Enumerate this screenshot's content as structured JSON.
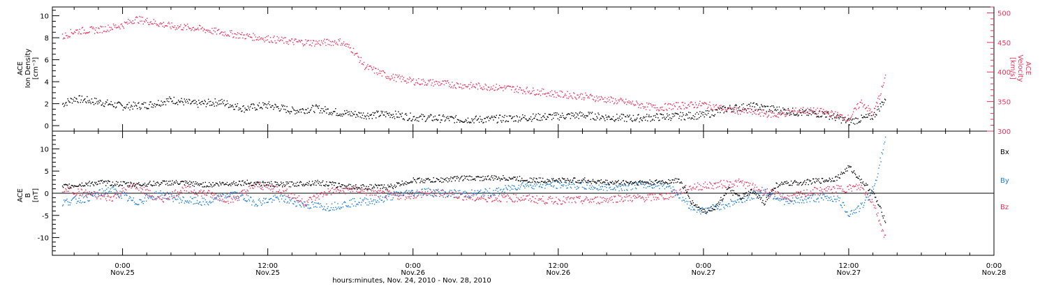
{
  "colors": {
    "black": "#000000",
    "red": "#e8345c",
    "blue": "#1e7fd8"
  },
  "chart_data": [
    {
      "type": "scatter",
      "panel": "top",
      "ylabel_left": [
        "ACE",
        "Ion Density",
        "[cm⁻³]"
      ],
      "ylabel_right": [
        "ACE",
        "Velocity",
        "[km/s]"
      ],
      "left_axis": {
        "ylim": [
          -0.5,
          10.8
        ],
        "ticks": [
          "0",
          "2",
          "4",
          "6",
          "8",
          "10"
        ],
        "tick_values": [
          0,
          2,
          4,
          6,
          8,
          10
        ]
      },
      "right_axis": {
        "ylim": [
          300,
          510
        ],
        "ticks": [
          "300",
          "350",
          "400",
          "450",
          "500"
        ],
        "tick_values": [
          300,
          350,
          400,
          450,
          500
        ]
      },
      "x_unit": "hours since Nov. 24, 2010 00:00",
      "series": [
        {
          "color": "#000000",
          "axis": "left",
          "x": [
            19,
            20,
            22,
            24,
            26,
            28,
            30,
            32,
            34,
            36,
            38,
            40,
            42,
            44,
            46,
            48,
            50,
            52,
            54,
            56,
            58,
            60,
            62,
            64,
            66,
            68,
            70,
            72,
            74,
            76,
            78,
            80,
            82,
            84,
            86,
            87
          ],
          "y": [
            2.0,
            2.5,
            2.2,
            1.8,
            1.9,
            2.4,
            2.0,
            2.2,
            1.6,
            1.9,
            1.4,
            1.6,
            1.2,
            1.0,
            1.1,
            0.8,
            0.7,
            0.6,
            0.6,
            0.7,
            0.8,
            0.9,
            1.0,
            0.8,
            0.7,
            0.8,
            0.9,
            1.0,
            1.6,
            1.8,
            1.5,
            1.2,
            1.1,
            0.4,
            0.9,
            2.5
          ]
        },
        {
          "color": "#e8345c",
          "axis": "right",
          "x": [
            19,
            20,
            22,
            24,
            25,
            26,
            28,
            30,
            32,
            34,
            36,
            38,
            40,
            42,
            43,
            44,
            46,
            48,
            50,
            52,
            54,
            56,
            58,
            60,
            62,
            64,
            66,
            68,
            70,
            72,
            74,
            76,
            78,
            80,
            82,
            84,
            85,
            86,
            87
          ],
          "y": [
            460,
            470,
            472,
            480,
            490,
            487,
            478,
            475,
            468,
            462,
            457,
            452,
            450,
            452,
            438,
            410,
            393,
            385,
            382,
            378,
            376,
            373,
            368,
            363,
            360,
            354,
            348,
            340,
            344,
            346,
            337,
            333,
            328,
            336,
            333,
            322,
            350,
            330,
            390
          ]
        }
      ]
    },
    {
      "type": "scatter",
      "panel": "bottom",
      "ylabel": [
        "ACE",
        "B",
        "[nT]"
      ],
      "ylim": [
        -14,
        14
      ],
      "yticks": [
        "-10",
        "-5",
        "0",
        "5",
        "10"
      ],
      "ytick_values": [
        -10,
        -5,
        0,
        5,
        10
      ],
      "legend": [
        "Bx",
        "By",
        "Bz"
      ],
      "xticks_top": [
        "0:00",
        "12:00",
        "0:00",
        "12:00",
        "0:00",
        "12:00",
        "0:00"
      ],
      "xticks_bottom": [
        "Nov.25",
        "Nov.25",
        "Nov.26",
        "Nov.26",
        "Nov.27",
        "Nov.27",
        "Nov.28"
      ],
      "xtick_values": [
        24,
        36,
        48,
        60,
        72,
        84,
        96
      ],
      "xlim": [
        18.2,
        96
      ],
      "xlabel": "hours:minutes, Nov. 24, 2010 - Nov. 28, 2010",
      "series": [
        {
          "name": "Bx",
          "color": "#000000",
          "x": [
            19,
            22,
            25,
            28,
            31,
            34,
            37,
            40,
            43,
            46,
            48,
            50,
            52,
            54,
            56,
            58,
            60,
            62,
            64,
            66,
            68,
            70,
            71,
            72,
            73,
            74,
            75,
            76,
            77,
            78,
            80,
            82,
            83,
            84,
            85,
            86,
            87
          ],
          "y": [
            1.5,
            2.5,
            2.0,
            2.5,
            2.0,
            2.5,
            2.0,
            2.5,
            1.5,
            1.5,
            3.0,
            3.0,
            3.5,
            3.5,
            3.5,
            3.0,
            3.0,
            3.0,
            2.5,
            2.5,
            2.5,
            3.0,
            -2.0,
            -4.0,
            -3.0,
            1.0,
            -1.0,
            0.5,
            -2.0,
            2.0,
            2.5,
            3.0,
            3.5,
            6.0,
            3.0,
            0.0,
            -6.0
          ]
        },
        {
          "name": "By",
          "color": "#1e7fd8",
          "x": [
            19,
            21,
            23,
            25,
            27,
            29,
            31,
            33,
            35,
            37,
            39,
            41,
            43,
            45,
            47,
            49,
            51,
            53,
            55,
            57,
            59,
            61,
            63,
            65,
            67,
            69,
            71,
            72,
            73,
            75,
            77,
            79,
            81,
            83,
            84,
            85,
            86,
            87
          ],
          "y": [
            -2.0,
            -1.0,
            1.0,
            -2.0,
            0.0,
            -1.5,
            -2.0,
            0.0,
            -2.0,
            -1.0,
            -2.5,
            -3.0,
            -2.0,
            -1.5,
            0.0,
            0.5,
            0.0,
            0.0,
            0.5,
            2.0,
            2.0,
            2.0,
            1.5,
            1.5,
            2.0,
            2.0,
            -3.0,
            -4.0,
            -3.0,
            -1.5,
            0.5,
            -2.0,
            -1.0,
            -1.0,
            -4.5,
            -3.0,
            1.0,
            12.0
          ]
        },
        {
          "name": "Bz",
          "color": "#e8345c",
          "x": [
            19,
            21,
            23,
            25,
            27,
            29,
            31,
            33,
            35,
            37,
            39,
            41,
            43,
            45,
            47,
            49,
            51,
            53,
            55,
            57,
            59,
            61,
            63,
            65,
            67,
            69,
            71,
            73,
            75,
            77,
            79,
            81,
            83,
            85,
            86,
            87
          ],
          "y": [
            1.0,
            0.0,
            -1.0,
            2.0,
            -1.5,
            1.0,
            0.0,
            -1.5,
            2.0,
            1.0,
            -2.0,
            0.5,
            1.0,
            0.0,
            -0.5,
            0.0,
            0.0,
            -1.0,
            -1.0,
            -1.0,
            -1.5,
            -1.5,
            -1.5,
            -1.0,
            -1.0,
            -0.5,
            1.5,
            2.0,
            2.5,
            0.5,
            -1.0,
            0.5,
            1.0,
            1.5,
            -2.0,
            -10.0
          ]
        }
      ]
    }
  ]
}
